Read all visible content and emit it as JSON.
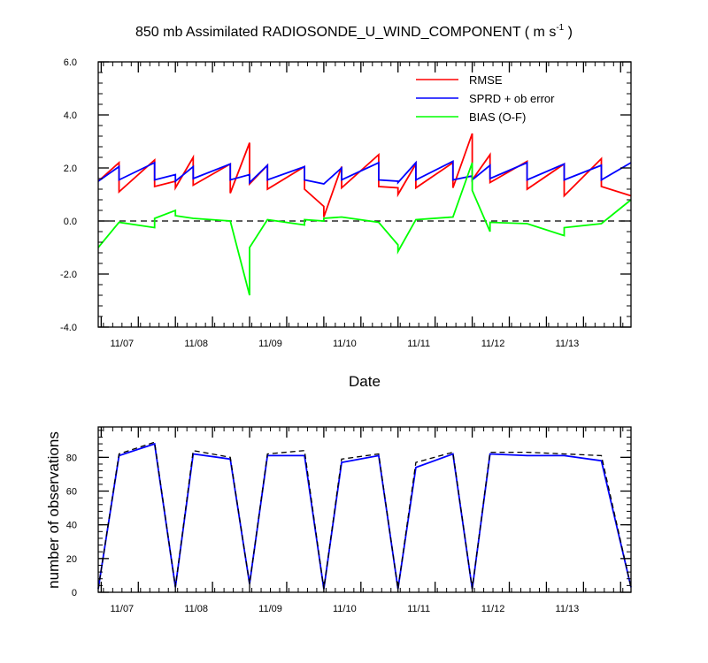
{
  "chart_data": [
    {
      "type": "line",
      "title": "850 mb Assimilated RADIOSONDE_U_WIND_COMPONENT ( m s",
      "title_superscript": "-1",
      "title_suffix": " )",
      "xlabel": "Date",
      "ylabel": "",
      "ylim": [
        -4,
        6
      ],
      "yticks": [
        -4,
        -2,
        0,
        2,
        4,
        6
      ],
      "ytick_labels": [
        "-4.0",
        "-2.0",
        "0.0",
        "2.0",
        "4.0",
        "6.0"
      ],
      "xlim": [
        6.68,
        13.86
      ],
      "xticks": [
        7,
        8,
        9,
        10,
        11,
        12,
        13
      ],
      "xtick_labels": [
        "11/07",
        "11/08",
        "11/09",
        "11/10",
        "11/11",
        "11/12",
        "11/13"
      ],
      "legend_position": "top-right",
      "zero_line": {
        "y": 0,
        "style": "dashed",
        "color": "#000000"
      },
      "series": [
        {
          "name": "RMSE",
          "color": "#ff0000",
          "x": [
            6.68,
            6.96,
            6.96,
            7.44,
            7.44,
            7.72,
            7.72,
            7.96,
            7.96,
            8.46,
            8.46,
            8.72,
            8.72,
            8.96,
            8.96,
            9.46,
            9.46,
            9.72,
            9.72,
            9.96,
            9.96,
            10.46,
            10.46,
            10.72,
            10.72,
            10.96,
            10.96,
            11.46,
            11.46,
            11.72,
            11.72,
            11.96,
            11.96,
            12.46,
            12.46,
            12.96,
            12.96,
            13.46,
            13.46,
            13.86
          ],
          "y": [
            1.5,
            2.2,
            1.1,
            2.3,
            1.3,
            1.5,
            1.25,
            2.4,
            1.35,
            2.15,
            1.05,
            2.95,
            1.4,
            2.1,
            1.2,
            2.05,
            1.2,
            0.55,
            0.15,
            2.05,
            1.25,
            2.5,
            1.3,
            1.25,
            1.0,
            2.15,
            1.25,
            2.2,
            1.25,
            3.3,
            1.55,
            2.5,
            1.45,
            2.25,
            1.2,
            2.15,
            0.95,
            2.35,
            1.3,
            0.95
          ]
        },
        {
          "name": "SPRD + ob error",
          "color": "#0000ff",
          "x": [
            6.68,
            6.96,
            6.96,
            7.44,
            7.44,
            7.72,
            7.72,
            7.96,
            7.96,
            8.46,
            8.46,
            8.72,
            8.72,
            8.96,
            8.96,
            9.46,
            9.46,
            9.72,
            9.72,
            9.96,
            9.96,
            10.46,
            10.46,
            10.72,
            10.72,
            10.96,
            10.96,
            11.46,
            11.46,
            11.72,
            11.72,
            11.96,
            11.96,
            12.46,
            12.46,
            12.96,
            12.96,
            13.46,
            13.46,
            13.86
          ],
          "y": [
            1.5,
            2.05,
            1.55,
            2.2,
            1.55,
            1.75,
            1.5,
            2.05,
            1.6,
            2.15,
            1.55,
            1.75,
            1.45,
            2.1,
            1.55,
            2.05,
            1.55,
            1.4,
            1.4,
            2.0,
            1.55,
            2.2,
            1.55,
            1.5,
            1.45,
            2.2,
            1.55,
            2.25,
            1.55,
            1.7,
            1.55,
            2.1,
            1.6,
            2.2,
            1.55,
            2.15,
            1.55,
            2.1,
            1.55,
            2.2
          ]
        },
        {
          "name": "BIAS (O-F)",
          "color": "#00ff00",
          "x": [
            6.68,
            6.96,
            7.44,
            7.44,
            7.72,
            7.72,
            7.96,
            8.46,
            8.72,
            8.72,
            8.96,
            9.46,
            9.46,
            9.72,
            9.72,
            9.96,
            10.46,
            10.72,
            10.72,
            10.96,
            11.46,
            11.72,
            11.72,
            11.96,
            11.96,
            12.46,
            12.96,
            12.96,
            13.46,
            13.86
          ],
          "y": [
            -1.0,
            -0.05,
            -0.25,
            0.1,
            0.4,
            0.2,
            0.1,
            0.0,
            -2.8,
            -1.0,
            0.05,
            -0.15,
            0.05,
            0.0,
            0.1,
            0.15,
            -0.05,
            -0.9,
            -1.15,
            0.05,
            0.15,
            2.2,
            1.15,
            -0.4,
            -0.05,
            -0.1,
            -0.55,
            -0.25,
            -0.1,
            0.8
          ]
        }
      ]
    },
    {
      "type": "line",
      "title": "",
      "xlabel": "",
      "ylabel": "number of observations",
      "ylim": [
        0,
        98
      ],
      "yticks": [
        0,
        20,
        40,
        60,
        80
      ],
      "ytick_labels": [
        "0",
        "20",
        "40",
        "60",
        "80"
      ],
      "xlim": [
        6.68,
        13.86
      ],
      "xticks": [
        7,
        8,
        9,
        10,
        11,
        12,
        13
      ],
      "xtick_labels": [
        "11/07",
        "11/08",
        "11/09",
        "11/10",
        "11/11",
        "11/12",
        "11/13"
      ],
      "series": [
        {
          "color": "#0000ff",
          "style": "solid",
          "x": [
            6.68,
            6.96,
            7.44,
            7.72,
            7.96,
            8.46,
            8.72,
            8.96,
            9.46,
            9.72,
            9.96,
            10.46,
            10.72,
            10.96,
            11.46,
            11.72,
            11.96,
            12.46,
            12.96,
            13.46,
            13.86
          ],
          "y": [
            2,
            81,
            88,
            3,
            82,
            79,
            5,
            81,
            81,
            2,
            77,
            81,
            2,
            74,
            82,
            2,
            82,
            81,
            81,
            78,
            3
          ]
        },
        {
          "color": "#000000",
          "style": "dashed",
          "x": [
            6.68,
            6.96,
            7.44,
            7.72,
            7.96,
            8.46,
            8.72,
            8.96,
            9.46,
            9.72,
            9.96,
            10.46,
            10.72,
            10.96,
            11.46,
            11.72,
            11.96,
            12.46,
            12.96,
            13.46,
            13.86
          ],
          "y": [
            2,
            82,
            89,
            3,
            84,
            80,
            5,
            82,
            84,
            2,
            79,
            82,
            2,
            77,
            83,
            2,
            83,
            83,
            82,
            81,
            3
          ]
        }
      ]
    }
  ]
}
